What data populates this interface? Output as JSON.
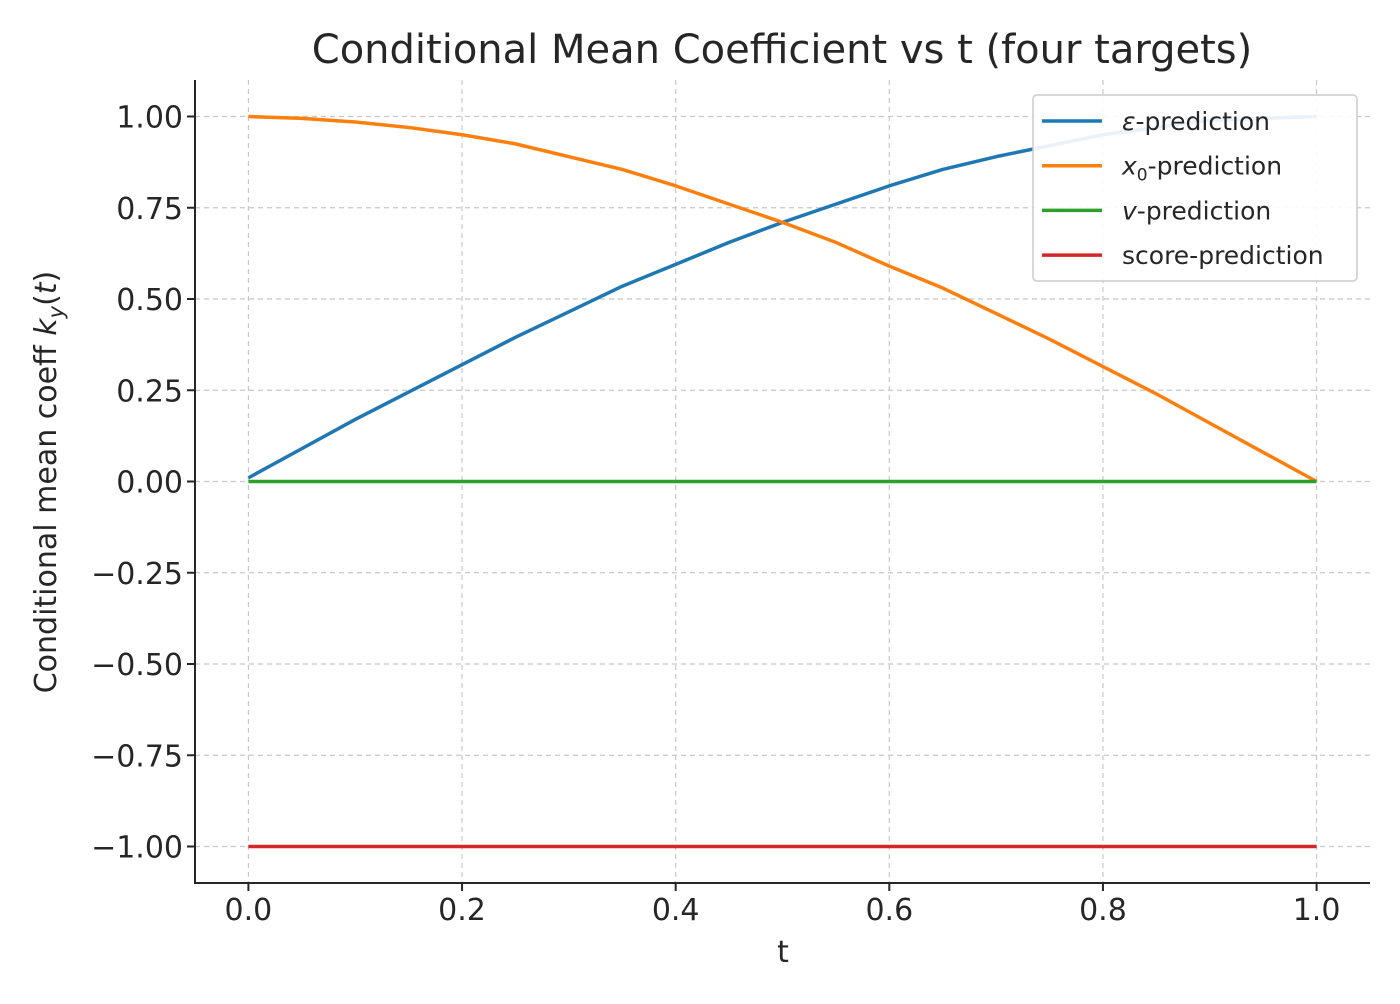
{
  "chart_data": {
    "type": "line",
    "title": "Conditional Mean Coefficient vs t (four targets)",
    "xlabel": "t",
    "ylabel": {
      "main": "Conditional mean coeff ",
      "math_k": "k",
      "math_sub": "y",
      "math_paren_open": "(",
      "math_t": "t",
      "math_paren_close": ")"
    },
    "xlim": [
      -0.05,
      1.05
    ],
    "ylim": [
      -1.1,
      1.1
    ],
    "xticks": [
      0.0,
      0.2,
      0.4,
      0.6,
      0.8,
      1.0
    ],
    "xtick_labels": [
      "0.0",
      "0.2",
      "0.4",
      "0.6",
      "0.8",
      "1.0"
    ],
    "yticks": [
      1.0,
      0.75,
      0.5,
      0.25,
      0.0,
      -0.25,
      -0.5,
      -0.75,
      -1.0
    ],
    "ytick_labels": [
      "1.00",
      "0.75",
      "0.50",
      "0.25",
      "0.00",
      "−0.25",
      "−0.50",
      "−0.75",
      "−1.00"
    ],
    "grid": true,
    "legend_placement": "top-right",
    "x": [
      0.0,
      0.05,
      0.1,
      0.15,
      0.2,
      0.25,
      0.3,
      0.35,
      0.4,
      0.45,
      0.5,
      0.55,
      0.6,
      0.65,
      0.7,
      0.75,
      0.8,
      0.85,
      0.9,
      0.95,
      1.0
    ],
    "series": [
      {
        "legend_math": "ε",
        "legend_sub": "",
        "legend_rest": "-prediction",
        "color": "#1f77b4",
        "values": [
          0.01,
          0.09,
          0.17,
          0.245,
          0.32,
          0.395,
          0.465,
          0.535,
          0.595,
          0.655,
          0.71,
          0.76,
          0.81,
          0.855,
          0.89,
          0.92,
          0.95,
          0.97,
          0.99,
          0.995,
          1.0
        ]
      },
      {
        "legend_math": "x",
        "legend_sub": "0",
        "legend_rest": "-prediction",
        "color": "#ff7f0e",
        "values": [
          1.0,
          0.995,
          0.985,
          0.97,
          0.95,
          0.925,
          0.89,
          0.855,
          0.81,
          0.76,
          0.71,
          0.655,
          0.59,
          0.53,
          0.46,
          0.39,
          0.315,
          0.24,
          0.16,
          0.08,
          0.0
        ]
      },
      {
        "legend_math": "v",
        "legend_sub": "",
        "legend_rest": "-prediction",
        "color": "#2ca02c",
        "values": [
          0.0,
          0.0,
          0.0,
          0.0,
          0.0,
          0.0,
          0.0,
          0.0,
          0.0,
          0.0,
          0.0,
          0.0,
          0.0,
          0.0,
          0.0,
          0.0,
          0.0,
          0.0,
          0.0,
          0.0,
          0.0
        ]
      },
      {
        "legend_math": "",
        "legend_sub": "",
        "legend_rest": "score-prediction",
        "color": "#d62728",
        "values": [
          -1.0,
          -1.0,
          -1.0,
          -1.0,
          -1.0,
          -1.0,
          -1.0,
          -1.0,
          -1.0,
          -1.0,
          -1.0,
          -1.0,
          -1.0,
          -1.0,
          -1.0,
          -1.0,
          -1.0,
          -1.0,
          -1.0,
          -1.0,
          -1.0
        ]
      }
    ]
  }
}
